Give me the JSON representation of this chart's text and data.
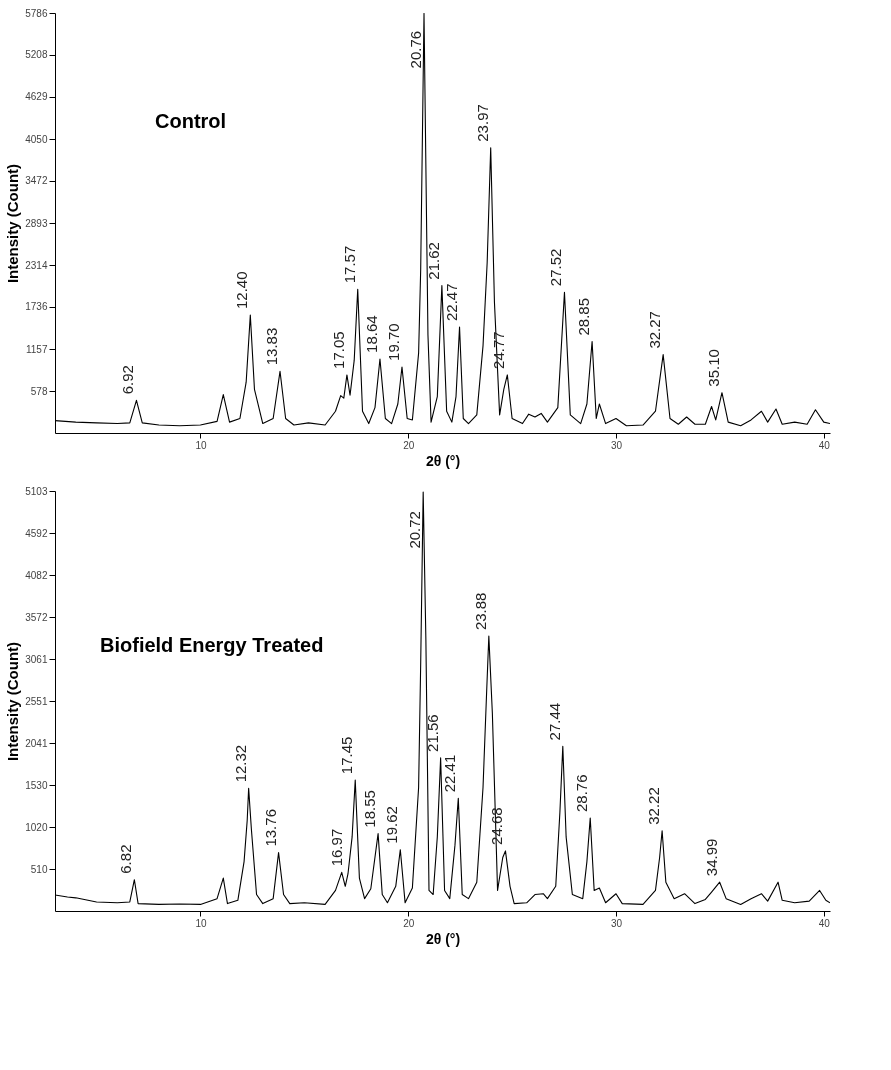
{
  "chart_data": [
    {
      "type": "line",
      "title": "Control",
      "xlabel": "2θ (°)",
      "ylabel": "Intensity (Count)",
      "color": "#000000",
      "line_style": "solid",
      "marker": "none",
      "grid": false,
      "xlim": [
        3,
        40.3
      ],
      "ylim": [
        0,
        5786
      ],
      "xticks": [
        10,
        20,
        30,
        40
      ],
      "yticks": [
        578,
        1157,
        1736,
        2314,
        2893,
        3472,
        4050,
        4629,
        5208,
        5786
      ],
      "x": [
        3,
        3.5,
        4,
        5,
        6,
        6.6,
        6.92,
        7.2,
        8,
        9,
        10,
        10.8,
        11.1,
        11.4,
        11.9,
        12.2,
        12.4,
        12.6,
        13.0,
        13.5,
        13.83,
        14.1,
        14.5,
        15.2,
        16,
        16.5,
        16.75,
        16.9,
        17.05,
        17.2,
        17.4,
        17.57,
        17.8,
        18.1,
        18.4,
        18.64,
        18.9,
        19.2,
        19.5,
        19.7,
        19.95,
        20.2,
        20.5,
        20.6,
        20.76,
        20.95,
        21.1,
        21.4,
        21.62,
        21.85,
        22.1,
        22.3,
        22.47,
        22.65,
        22.9,
        23.3,
        23.6,
        23.8,
        23.97,
        24.15,
        24.4,
        24.6,
        24.77,
        25.0,
        25.5,
        25.8,
        26.1,
        26.4,
        26.7,
        27.2,
        27.52,
        27.8,
        28.3,
        28.6,
        28.85,
        29.05,
        29.2,
        29.5,
        30.0,
        30.5,
        31.3,
        31.9,
        32.27,
        32.6,
        33.0,
        33.4,
        33.8,
        34.3,
        34.6,
        34.8,
        35.1,
        35.4,
        36,
        36.5,
        37.0,
        37.3,
        37.7,
        38.0,
        38.6,
        39.2,
        39.6,
        40,
        40.3
      ],
      "values": [
        170,
        160,
        150,
        140,
        130,
        140,
        450,
        140,
        110,
        100,
        110,
        160,
        530,
        150,
        200,
        700,
        1625,
        600,
        130,
        200,
        850,
        200,
        110,
        140,
        110,
        300,
        515,
        480,
        800,
        520,
        1000,
        1980,
        300,
        130,
        350,
        1020,
        200,
        130,
        400,
        910,
        200,
        180,
        1100,
        2250,
        5780,
        1350,
        150,
        500,
        2030,
        300,
        150,
        500,
        1460,
        200,
        130,
        250,
        1200,
        2350,
        3930,
        1800,
        250,
        600,
        800,
        200,
        130,
        260,
        220,
        270,
        150,
        350,
        1940,
        250,
        130,
        400,
        1260,
        200,
        400,
        130,
        200,
        100,
        110,
        300,
        1080,
        200,
        120,
        220,
        120,
        120,
        365,
        180,
        555,
        150,
        100,
        180,
        300,
        150,
        330,
        120,
        150,
        120,
        320,
        150,
        130
      ],
      "annotations": [
        {
          "text": "6.92",
          "x": 6.92,
          "y": 450
        },
        {
          "text": "12.40",
          "x": 12.4,
          "y": 1625
        },
        {
          "text": "13.83",
          "x": 13.83,
          "y": 850
        },
        {
          "text": "17.05",
          "x": 17.05,
          "y": 800
        },
        {
          "text": "17.57",
          "x": 17.57,
          "y": 1980
        },
        {
          "text": "18.64",
          "x": 18.64,
          "y": 1020
        },
        {
          "text": "19.70",
          "x": 19.7,
          "y": 910
        },
        {
          "text": "20.76",
          "x": 20.76,
          "y": 4940
        },
        {
          "text": "21.62",
          "x": 21.62,
          "y": 2030
        },
        {
          "text": "22.47",
          "x": 22.47,
          "y": 1460
        },
        {
          "text": "23.97",
          "x": 23.97,
          "y": 3930
        },
        {
          "text": "24.77",
          "x": 24.77,
          "y": 800
        },
        {
          "text": "27.52",
          "x": 27.52,
          "y": 1940
        },
        {
          "text": "28.85",
          "x": 28.85,
          "y": 1260
        },
        {
          "text": "32.27",
          "x": 32.27,
          "y": 1080
        },
        {
          "text": "35.10",
          "x": 35.1,
          "y": 555
        }
      ]
    },
    {
      "type": "line",
      "title": "Biofield Energy Treated",
      "xlabel": "2θ (°)",
      "ylabel": "Intensity (Count)",
      "color": "#000000",
      "line_style": "solid",
      "marker": "none",
      "grid": false,
      "xlim": [
        3,
        40.3
      ],
      "ylim": [
        0,
        5103
      ],
      "xticks": [
        10,
        20,
        30,
        40
      ],
      "yticks": [
        510,
        1020,
        1530,
        2041,
        2551,
        3061,
        3572,
        4082,
        4592,
        5103
      ],
      "x": [
        3,
        3.6,
        4,
        5,
        6,
        6.6,
        6.82,
        7.0,
        8,
        9,
        10,
        10.8,
        11.1,
        11.3,
        11.8,
        12.1,
        12.25,
        12.32,
        12.45,
        12.7,
        13.0,
        13.5,
        13.76,
        14.0,
        14.3,
        15,
        16,
        16.5,
        16.8,
        16.97,
        17.1,
        17.3,
        17.45,
        17.65,
        17.9,
        18.2,
        18.55,
        18.75,
        19.0,
        19.4,
        19.62,
        19.85,
        20.2,
        20.5,
        20.6,
        20.72,
        20.85,
        21.0,
        21.2,
        21.4,
        21.56,
        21.75,
        22.0,
        22.25,
        22.41,
        22.6,
        22.9,
        23.3,
        23.6,
        23.78,
        23.88,
        24.05,
        24.3,
        24.55,
        24.68,
        24.9,
        25.1,
        25.7,
        26.1,
        26.5,
        26.7,
        27.1,
        27.3,
        27.44,
        27.6,
        27.9,
        28.4,
        28.6,
        28.76,
        28.95,
        29.2,
        29.5,
        30.0,
        30.3,
        31.3,
        31.9,
        32.1,
        32.22,
        32.4,
        32.8,
        33.3,
        33.8,
        34.3,
        34.6,
        34.99,
        35.3,
        36,
        36.5,
        37.0,
        37.3,
        37.8,
        38.0,
        38.6,
        39.3,
        39.8,
        40.1,
        40.3
      ],
      "values": [
        195,
        170,
        160,
        110,
        100,
        110,
        380,
        90,
        80,
        85,
        80,
        150,
        400,
        90,
        130,
        600,
        1100,
        1490,
        1000,
        200,
        90,
        150,
        710,
        200,
        90,
        100,
        80,
        250,
        470,
        300,
        450,
        900,
        1590,
        400,
        150,
        270,
        940,
        200,
        100,
        300,
        745,
        100,
        280,
        1500,
        3000,
        5090,
        3300,
        250,
        200,
        900,
        1860,
        250,
        150,
        800,
        1370,
        200,
        150,
        350,
        1500,
        2700,
        3340,
        2400,
        250,
        650,
        730,
        300,
        90,
        100,
        200,
        210,
        150,
        300,
        1200,
        2000,
        900,
        200,
        150,
        600,
        1130,
        250,
        280,
        100,
        210,
        90,
        80,
        250,
        650,
        975,
        350,
        150,
        210,
        90,
        140,
        230,
        350,
        150,
        80,
        150,
        210,
        120,
        350,
        130,
        100,
        120,
        250,
        130,
        100
      ],
      "annotations": [
        {
          "text": "6.82",
          "x": 6.82,
          "y": 380
        },
        {
          "text": "12.32",
          "x": 12.32,
          "y": 1490
        },
        {
          "text": "13.76",
          "x": 13.76,
          "y": 710
        },
        {
          "text": "16.97",
          "x": 16.97,
          "y": 470
        },
        {
          "text": "17.45",
          "x": 17.45,
          "y": 1590
        },
        {
          "text": "18.55",
          "x": 18.55,
          "y": 940
        },
        {
          "text": "19.62",
          "x": 19.62,
          "y": 745
        },
        {
          "text": "20.72",
          "x": 20.72,
          "y": 4330
        },
        {
          "text": "21.56",
          "x": 21.56,
          "y": 1860
        },
        {
          "text": "22.41",
          "x": 22.41,
          "y": 1370
        },
        {
          "text": "23.88",
          "x": 23.88,
          "y": 3340
        },
        {
          "text": "24.68",
          "x": 24.68,
          "y": 730
        },
        {
          "text": "27.44",
          "x": 27.44,
          "y": 2000
        },
        {
          "text": "28.76",
          "x": 28.76,
          "y": 1130
        },
        {
          "text": "32.22",
          "x": 32.22,
          "y": 975
        },
        {
          "text": "34.99",
          "x": 34.99,
          "y": 350
        }
      ]
    }
  ]
}
